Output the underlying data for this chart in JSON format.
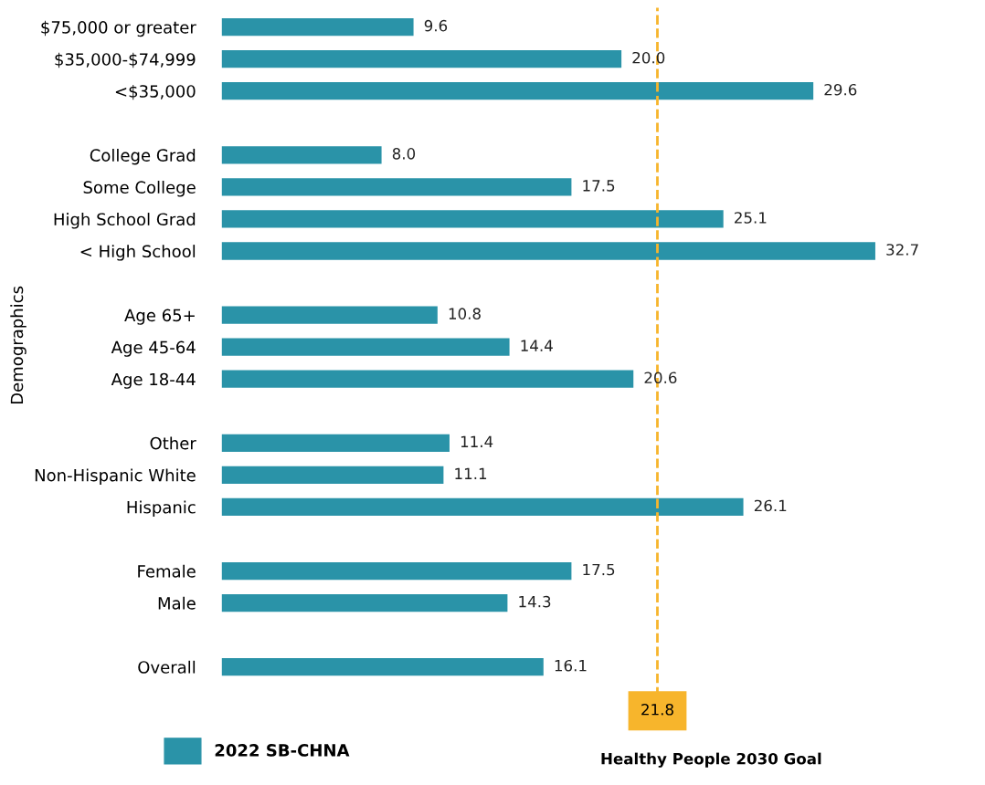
{
  "chart_data": {
    "type": "bar",
    "orientation": "horizontal",
    "ylabel": "Demographics",
    "categories": [
      "$75,000 or greater",
      "$35,000-$74,999",
      "<$35,000",
      null,
      "College Grad",
      "Some College",
      "High School Grad",
      "< High School",
      null,
      "Age 65+",
      "Age 45-64",
      "Age 18-44",
      null,
      "Other",
      "Non-Hispanic White",
      "Hispanic",
      null,
      "Female",
      "Male",
      null,
      "Overall"
    ],
    "series": [
      {
        "name": "2022 SB-CHNA",
        "color": "#2a93a8",
        "values": [
          9.6,
          20.0,
          29.6,
          null,
          8.0,
          17.5,
          25.1,
          32.7,
          null,
          10.8,
          14.4,
          20.6,
          null,
          11.4,
          11.1,
          26.1,
          null,
          17.5,
          14.3,
          null,
          16.1
        ],
        "value_labels": [
          "9.6",
          "20.0",
          "29.6",
          null,
          "8.0",
          "17.5",
          "25.1",
          "32.7",
          null,
          "10.8",
          "14.4",
          "20.6",
          null,
          "11.4",
          "11.1",
          "26.1",
          null,
          "17.5",
          "14.3",
          null,
          "16.1"
        ]
      }
    ],
    "ref_lines": [
      {
        "axis": "x",
        "value": 21.8,
        "label": "21.8",
        "color": "#f7b52c",
        "line_style": "dashed"
      }
    ],
    "annotations": [
      "Healthy People 2030 Goal"
    ],
    "legend": "bottom left",
    "grid": false
  }
}
